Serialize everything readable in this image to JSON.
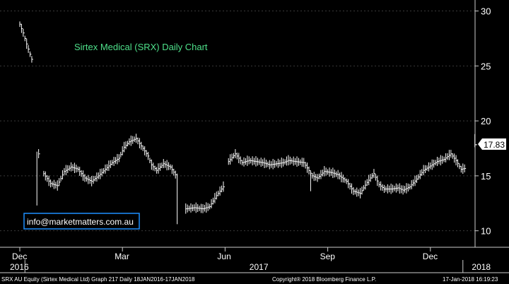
{
  "chart_data": {
    "type": "ohlc",
    "title": "Sirtex Medical (SRX) Daily Chart",
    "ylim": [
      8.5,
      31
    ],
    "yticks": [
      10,
      15,
      20,
      25,
      30
    ],
    "xlabels": [
      {
        "label": "Dec",
        "month": 0
      },
      {
        "label": "Mar",
        "month": 3
      },
      {
        "label": "Jun",
        "month": 6
      },
      {
        "label": "Sep",
        "month": 9
      },
      {
        "label": "Dec",
        "month": 12
      }
    ],
    "years": [
      {
        "label": "2016",
        "month": 0
      },
      {
        "label": "2017",
        "month": 7
      },
      {
        "label": "2018",
        "month": 13.5
      }
    ],
    "last_value": "17.83",
    "series_points": [
      [
        0,
        28.8
      ],
      [
        0.1,
        28.0
      ],
      [
        0.2,
        27.0
      ],
      [
        0.35,
        25.6
      ],
      [
        0.55,
        17.0
      ],
      [
        0.7,
        15.2
      ],
      [
        0.9,
        14.3
      ],
      [
        1.1,
        14.1
      ],
      [
        1.3,
        15.4
      ],
      [
        1.5,
        15.8
      ],
      [
        1.7,
        15.6
      ],
      [
        1.9,
        14.8
      ],
      [
        2.1,
        14.5
      ],
      [
        2.3,
        15.0
      ],
      [
        2.5,
        15.6
      ],
      [
        2.7,
        16.2
      ],
      [
        2.9,
        16.6
      ],
      [
        3.05,
        17.6
      ],
      [
        3.2,
        18.1
      ],
      [
        3.4,
        18.4
      ],
      [
        3.6,
        17.5
      ],
      [
        3.75,
        16.8
      ],
      [
        3.85,
        16.0
      ],
      [
        4.0,
        15.5
      ],
      [
        4.2,
        16.1
      ],
      [
        4.4,
        15.8
      ],
      [
        4.55,
        15.1
      ],
      [
        4.85,
        12.0
      ],
      [
        5.1,
        12.1
      ],
      [
        5.35,
        12.0
      ],
      [
        5.55,
        12.2
      ],
      [
        5.75,
        13.2
      ],
      [
        5.95,
        14.0
      ],
      [
        6.1,
        16.3
      ],
      [
        6.3,
        17.0
      ],
      [
        6.5,
        16.2
      ],
      [
        6.7,
        16.4
      ],
      [
        6.9,
        16.3
      ],
      [
        7.1,
        16.2
      ],
      [
        7.3,
        16.0
      ],
      [
        7.5,
        16.1
      ],
      [
        7.7,
        16.2
      ],
      [
        7.85,
        16.4
      ],
      [
        8.05,
        16.3
      ],
      [
        8.3,
        16.2
      ],
      [
        8.55,
        15.0
      ],
      [
        8.7,
        14.8
      ],
      [
        8.9,
        15.4
      ],
      [
        9.1,
        15.3
      ],
      [
        9.3,
        15.1
      ],
      [
        9.55,
        14.5
      ],
      [
        9.75,
        13.6
      ],
      [
        9.95,
        13.4
      ],
      [
        10.15,
        14.4
      ],
      [
        10.35,
        15.2
      ],
      [
        10.5,
        14.2
      ],
      [
        10.65,
        13.8
      ],
      [
        10.85,
        13.8
      ],
      [
        11.05,
        13.9
      ],
      [
        11.2,
        13.7
      ],
      [
        11.4,
        14.0
      ],
      [
        11.6,
        14.7
      ],
      [
        11.8,
        15.5
      ],
      [
        12.0,
        15.9
      ],
      [
        12.2,
        16.3
      ],
      [
        12.4,
        16.5
      ],
      [
        12.6,
        17.0
      ],
      [
        12.75,
        16.4
      ],
      [
        12.9,
        15.6
      ],
      [
        13.05,
        15.7
      ]
    ],
    "last_bar": {
      "month": 13.3,
      "high": 18.8,
      "low": 17.6,
      "close": 17.83
    }
  },
  "watermark": {
    "text": "info@marketmatters.com.au"
  },
  "footer": {
    "left": "SRX AU Equity (Sirtex Medical Ltd) Graph 217  Daily 18JAN2016-17JAN2018",
    "center": "Copyright® 2018 Bloomberg Finance L.P.",
    "right": "17-Jan-2018 16:19:23"
  },
  "colors": {
    "background": "#000000",
    "series": "#ffffff",
    "grid": "#555555",
    "title": "#4ee08a",
    "badge_border": "#1e90ff"
  }
}
